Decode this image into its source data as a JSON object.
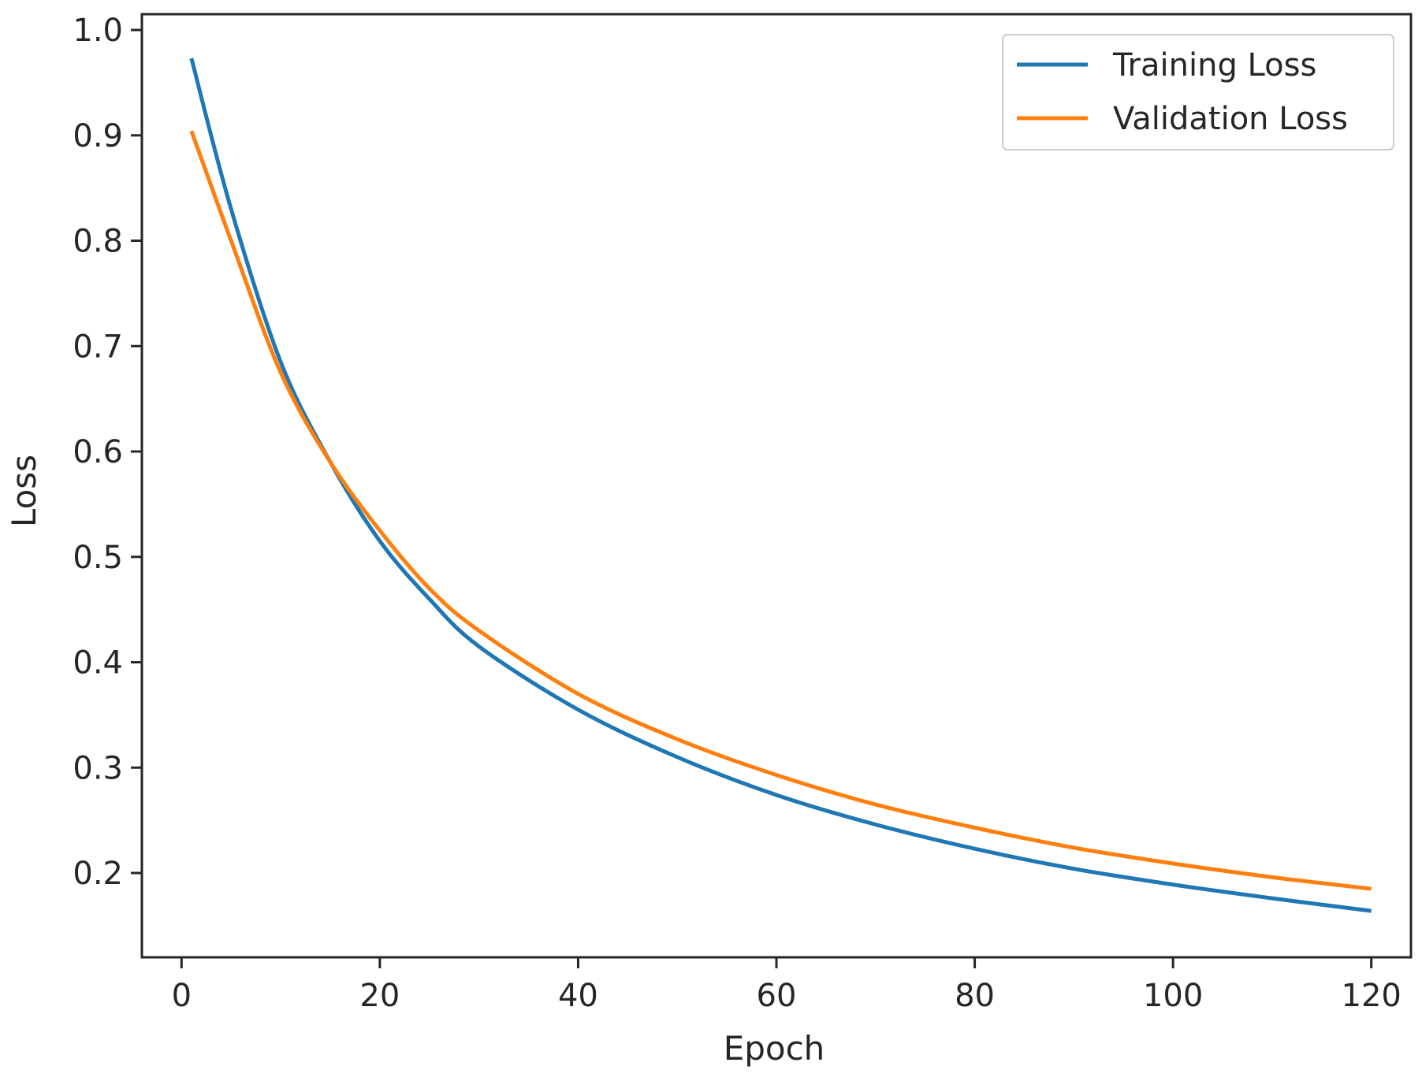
{
  "chart_data": {
    "type": "line",
    "title": "",
    "xlabel": "Epoch",
    "ylabel": "Loss",
    "xlim": [
      -4,
      124
    ],
    "ylim": [
      0.12,
      1.015
    ],
    "xticks": [
      0,
      20,
      40,
      60,
      80,
      100,
      120
    ],
    "xtick_labels": [
      "0",
      "20",
      "40",
      "60",
      "80",
      "100",
      "120"
    ],
    "yticks": [
      0.2,
      0.3,
      0.4,
      0.5,
      0.6,
      0.7,
      0.8,
      0.9,
      1.0
    ],
    "ytick_labels": [
      "0.2",
      "0.3",
      "0.4",
      "0.5",
      "0.6",
      "0.7",
      "0.8",
      "0.9",
      "1.0"
    ],
    "grid": false,
    "legend_position": "top-right",
    "series": [
      {
        "name": "Training Loss",
        "color": "#1f77b4",
        "x": [
          1,
          5,
          10,
          15,
          20,
          25,
          30,
          40,
          50,
          60,
          70,
          80,
          90,
          100,
          110,
          120
        ],
        "y": [
          0.973,
          0.83,
          0.685,
          0.59,
          0.515,
          0.46,
          0.415,
          0.355,
          0.31,
          0.274,
          0.246,
          0.223,
          0.204,
          0.189,
          0.176,
          0.164
        ]
      },
      {
        "name": "Validation Loss",
        "color": "#ff7f0e",
        "x": [
          1,
          5,
          10,
          15,
          20,
          25,
          30,
          40,
          50,
          60,
          70,
          80,
          90,
          100,
          110,
          120
        ],
        "y": [
          0.904,
          0.8,
          0.675,
          0.59,
          0.525,
          0.47,
          0.43,
          0.37,
          0.327,
          0.293,
          0.265,
          0.243,
          0.224,
          0.209,
          0.196,
          0.185
        ]
      }
    ]
  }
}
